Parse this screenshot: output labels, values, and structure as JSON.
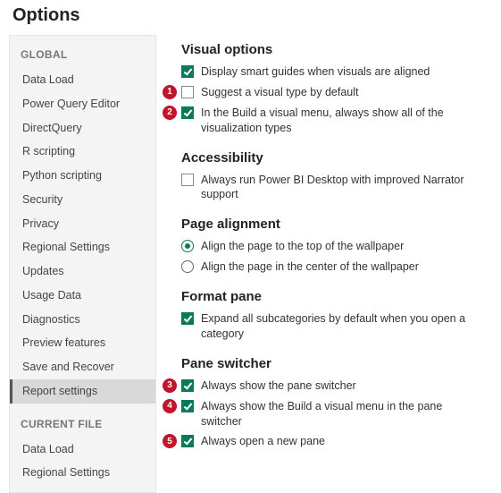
{
  "title": "Options",
  "colors": {
    "accent": "#0a7a5a",
    "callout_bg": "#c1152b",
    "callout_fg": "#ffffff",
    "sidebar_bg": "#f4f4f4",
    "sidebar_border": "#e4e4e4",
    "active_bg": "#d9d9d9",
    "section_header": "#767676",
    "text": "#333333"
  },
  "sidebar": {
    "sections": [
      {
        "header": "GLOBAL",
        "items": [
          {
            "label": "Data Load",
            "active": false
          },
          {
            "label": "Power Query Editor",
            "active": false
          },
          {
            "label": "DirectQuery",
            "active": false
          },
          {
            "label": "R scripting",
            "active": false
          },
          {
            "label": "Python scripting",
            "active": false
          },
          {
            "label": "Security",
            "active": false
          },
          {
            "label": "Privacy",
            "active": false
          },
          {
            "label": "Regional Settings",
            "active": false
          },
          {
            "label": "Updates",
            "active": false
          },
          {
            "label": "Usage Data",
            "active": false
          },
          {
            "label": "Diagnostics",
            "active": false
          },
          {
            "label": "Preview features",
            "active": false
          },
          {
            "label": "Save and Recover",
            "active": false
          },
          {
            "label": "Report settings",
            "active": true
          }
        ]
      },
      {
        "header": "CURRENT FILE",
        "items": [
          {
            "label": "Data Load",
            "active": false
          },
          {
            "label": "Regional Settings",
            "active": false
          }
        ]
      }
    ]
  },
  "groups": [
    {
      "title": "Visual options",
      "options": [
        {
          "type": "checkbox",
          "checked": true,
          "label": "Display smart guides when visuals are aligned",
          "callout": null
        },
        {
          "type": "checkbox",
          "checked": false,
          "label": "Suggest a visual type by default",
          "callout": "1"
        },
        {
          "type": "checkbox",
          "checked": true,
          "label": "In the Build a visual menu, always show all of the visualization types",
          "callout": "2"
        }
      ]
    },
    {
      "title": "Accessibility",
      "options": [
        {
          "type": "checkbox",
          "checked": false,
          "label": "Always run Power BI Desktop with improved Narrator support",
          "callout": null
        }
      ]
    },
    {
      "title": "Page alignment",
      "options": [
        {
          "type": "radio",
          "checked": true,
          "label": "Align the page to the top of the wallpaper",
          "callout": null
        },
        {
          "type": "radio",
          "checked": false,
          "label": "Align the page in the center of the wallpaper",
          "callout": null
        }
      ]
    },
    {
      "title": "Format pane",
      "options": [
        {
          "type": "checkbox",
          "checked": true,
          "label": "Expand all subcategories by default when you open a category",
          "callout": null
        }
      ]
    },
    {
      "title": "Pane switcher",
      "options": [
        {
          "type": "checkbox",
          "checked": true,
          "label": "Always show the pane switcher",
          "callout": "3"
        },
        {
          "type": "checkbox",
          "checked": true,
          "label": "Always show the Build a visual menu in the pane switcher",
          "callout": "4"
        },
        {
          "type": "checkbox",
          "checked": true,
          "label": "Always open a new pane",
          "callout": "5"
        }
      ]
    }
  ]
}
